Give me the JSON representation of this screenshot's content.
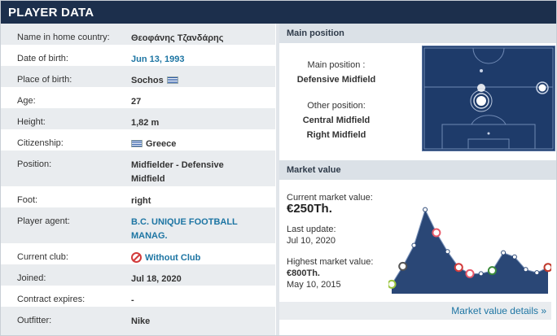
{
  "header": {
    "title": "PLAYER DATA"
  },
  "player_rows": [
    {
      "label": "Name in home country:",
      "value": "Θεοφάνης Τζανδάρης"
    },
    {
      "label": "Date of birth:",
      "value": "Jun 13, 1993"
    },
    {
      "label": "Place of birth:",
      "value": "Sochos"
    },
    {
      "label": "Age:",
      "value": "27"
    },
    {
      "label": "Height:",
      "value": "1,82 m"
    },
    {
      "label": "Citizenship:",
      "value": "Greece"
    },
    {
      "label": "Position:",
      "value": "Midfielder - Defensive Midfield"
    },
    {
      "label": "Foot:",
      "value": "right"
    },
    {
      "label": "Player agent:",
      "value": "B.C. UNIQUE FOOTBALL MANAG."
    },
    {
      "label": "Current club:",
      "value": "Without Club"
    },
    {
      "label": "Joined:",
      "value": "Jul 18, 2020"
    },
    {
      "label": "Contract expires:",
      "value": "-"
    },
    {
      "label": "Outfitter:",
      "value": "Nike"
    }
  ],
  "main_position": {
    "heading": "Main position",
    "main_label": "Main position :",
    "main_value": "Defensive Midfield",
    "other_label": "Other position:",
    "other_values": [
      "Central Midfield",
      "Right Midfield"
    ]
  },
  "market_value": {
    "heading": "Market value",
    "current_label": "Current market value:",
    "current_value": "€250Th.",
    "last_update_label": "Last update:",
    "last_update_value": "Jul 10, 2020",
    "highest_label": "Highest market value:",
    "highest_value": "€800Th.",
    "highest_date": "May 10, 2015",
    "details_link": "Market value details »"
  },
  "chart_data": {
    "type": "area",
    "values": [
      90,
      260,
      460,
      800,
      580,
      400,
      250,
      190,
      190,
      220,
      390,
      350,
      230,
      200,
      250
    ]
  },
  "colors": {
    "header": "#1c2f4c",
    "link": "#1d75a3",
    "pitch": "#1e3b6a",
    "chart_fill": "#2a4776"
  }
}
